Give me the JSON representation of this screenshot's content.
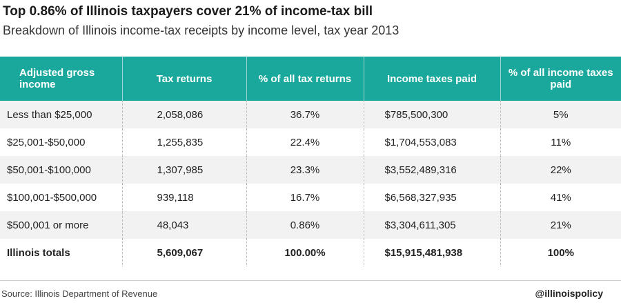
{
  "title": "Top 0.86% of Illinois taxpayers cover 21% of income-tax bill",
  "subtitle": "Breakdown of Illinois income-tax receipts by income level, tax year 2013",
  "colors": {
    "header_bg": "#1aa89d",
    "header_text": "#ffffff",
    "stripe": "#f2f2f2"
  },
  "table": {
    "headers": [
      "Adjusted gross income",
      "Tax returns",
      "% of all tax returns",
      "Income taxes paid",
      "% of all income taxes paid"
    ],
    "rows": [
      {
        "income": "Less than $25,000",
        "returns": "2,058,086",
        "pct_returns": "36.7%",
        "taxes": "$785,500,300",
        "pct_taxes": "5%"
      },
      {
        "income": "$25,001-$50,000",
        "returns": "1,255,835",
        "pct_returns": "22.4%",
        "taxes": "$1,704,553,083",
        "pct_taxes": "11%"
      },
      {
        "income": "$50,001-$100,000",
        "returns": "1,307,985",
        "pct_returns": "23.3%",
        "taxes": "$3,552,489,316",
        "pct_taxes": "22%"
      },
      {
        "income": "$100,001-$500,000",
        "returns": "939,118",
        "pct_returns": "16.7%",
        "taxes": "$6,568,327,935",
        "pct_taxes": "41%"
      },
      {
        "income": "$500,001 or more",
        "returns": "48,043",
        "pct_returns": "0.86%",
        "taxes": "$3,304,611,305",
        "pct_taxes": "21%"
      }
    ],
    "totals": {
      "income": "Illinois totals",
      "returns": "5,609,067",
      "pct_returns": "100.00%",
      "taxes": "$15,915,481,938",
      "pct_taxes": "100%"
    }
  },
  "footer": {
    "source": "Source: Illinois Department of Revenue",
    "handle": "@illinoispolicy"
  }
}
